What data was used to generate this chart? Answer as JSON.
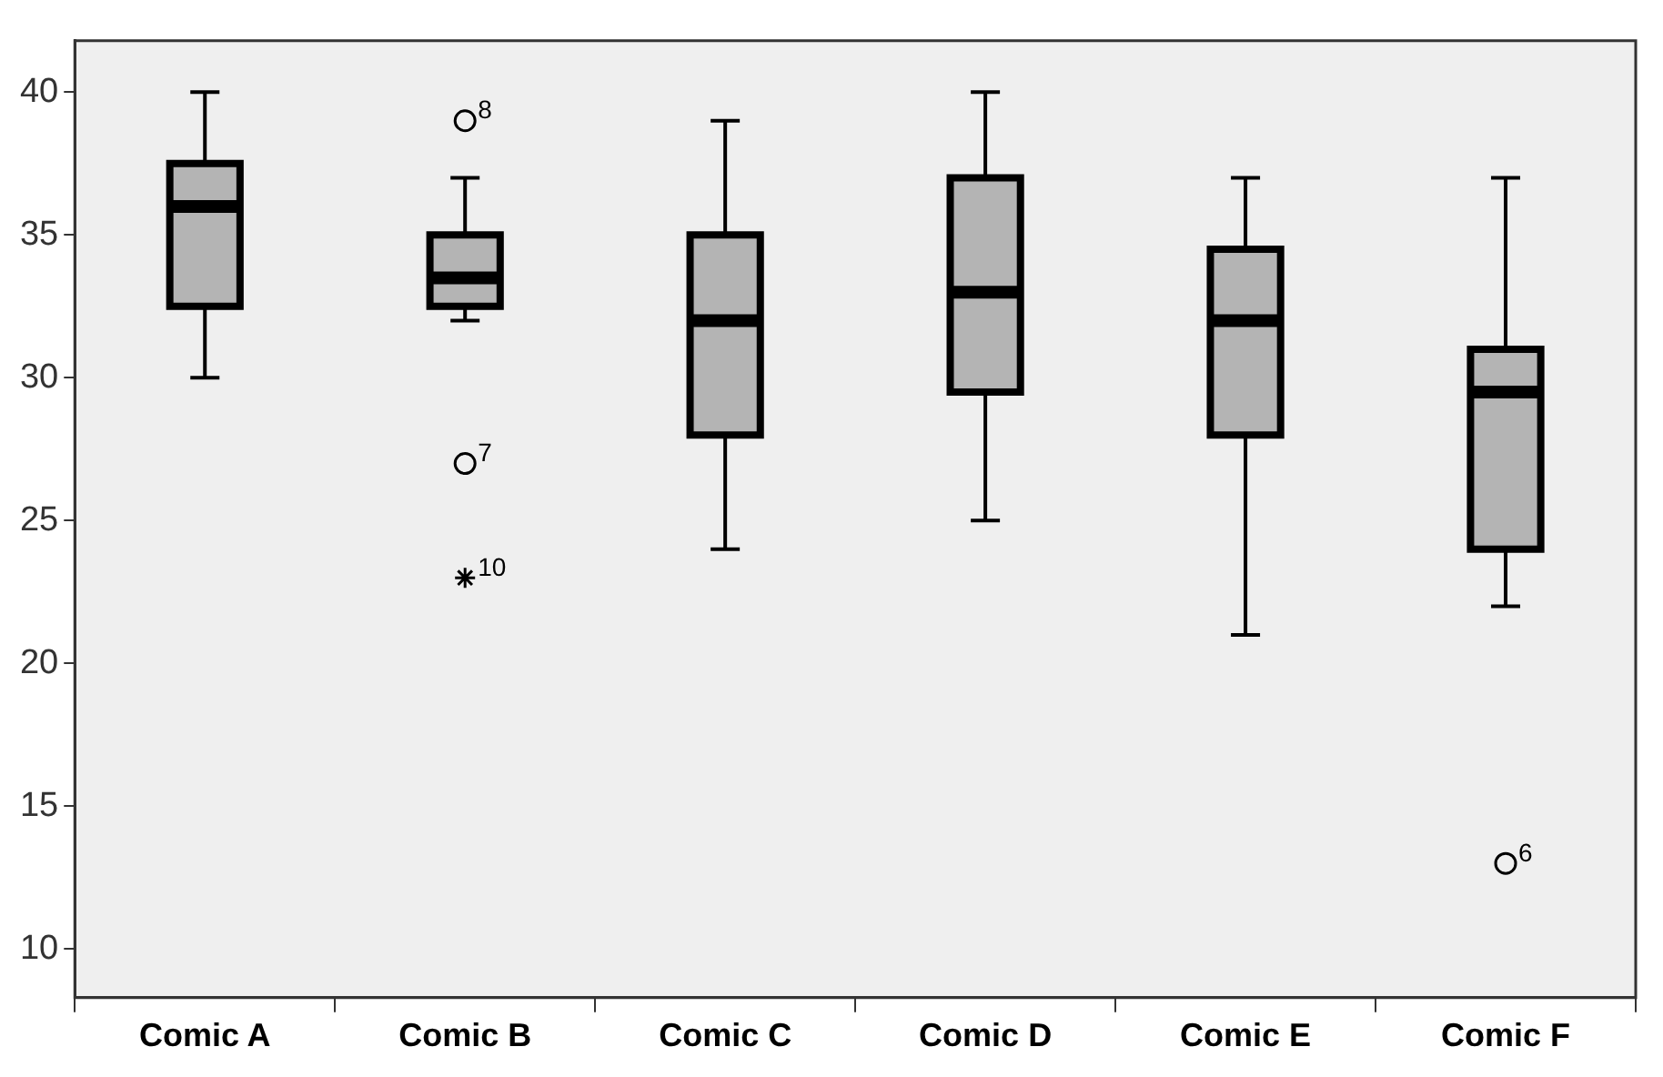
{
  "chart_data": {
    "type": "box",
    "categories": [
      "Comic A",
      "Comic B",
      "Comic C",
      "Comic D",
      "Comic E",
      "Comic F"
    ],
    "ylim": [
      8.3,
      41.8
    ],
    "yticks": [
      10,
      15,
      20,
      25,
      30,
      35,
      40
    ],
    "series": [
      {
        "type": "box",
        "color": "#b4b4b4",
        "boxes": [
          {
            "low": 30,
            "q1": 32.5,
            "median": 36,
            "q3": 37.5,
            "high": 40
          },
          {
            "low": 32,
            "q1": 32.5,
            "median": 33.5,
            "q3": 35,
            "high": 37
          },
          {
            "low": 24,
            "q1": 28,
            "median": 32,
            "q3": 35,
            "high": 39
          },
          {
            "low": 25,
            "q1": 29.5,
            "median": 33,
            "q3": 37,
            "high": 40
          },
          {
            "low": 21,
            "q1": 28,
            "median": 32,
            "q3": 34.5,
            "high": 37
          },
          {
            "low": 22,
            "q1": 24,
            "median": 29.5,
            "q3": 31,
            "high": 37
          }
        ]
      },
      {
        "type": "scatter",
        "marker": "circle",
        "color": "#000000",
        "x": [
          "Comic B",
          "Comic B",
          "Comic F"
        ],
        "values": [
          39,
          27,
          13
        ]
      },
      {
        "type": "scatter",
        "marker": "cross",
        "color": "#000000",
        "x": [
          "Comic B"
        ],
        "values": [
          23
        ]
      }
    ],
    "annotations": [
      {
        "text": "8",
        "x": "Comic B",
        "y": 39
      },
      {
        "text": "7",
        "x": "Comic B",
        "y": 27
      },
      {
        "text": "10",
        "x": "Comic B",
        "y": 23
      },
      {
        "text": "6",
        "x": "Comic F",
        "y": 13
      }
    ]
  }
}
